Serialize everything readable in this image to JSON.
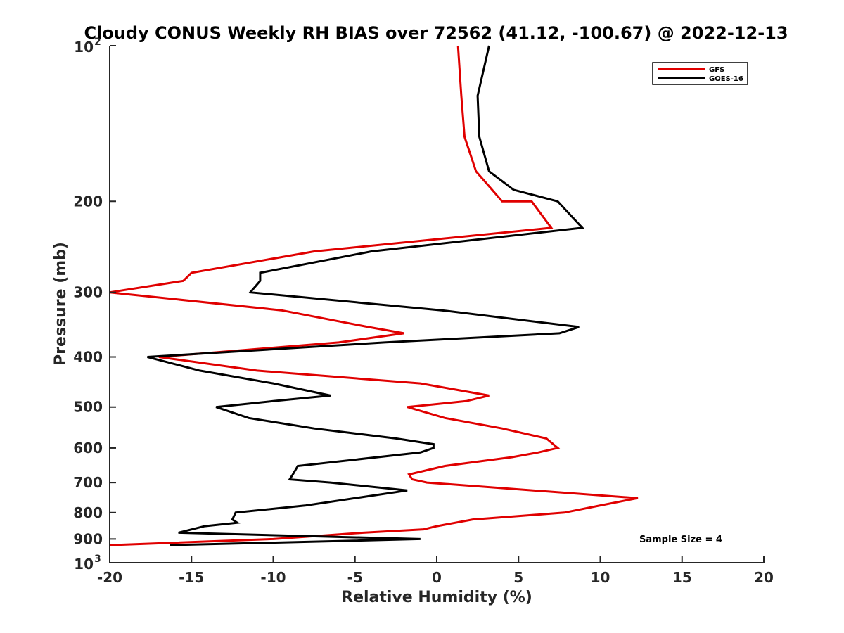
{
  "chart_data": {
    "type": "line",
    "title": "Cloudy CONUS Weekly RH BIAS over 72562 (41.12, -100.67) @ 2022-12-13",
    "xlabel": "Relative Humidity (%)",
    "ylabel": "Pressure (mb)",
    "xlim": [
      -20,
      20
    ],
    "ylim": [
      100,
      1000
    ],
    "y_scale": "log",
    "y_reversed": true,
    "x_ticks": [
      -20,
      -15,
      -10,
      -5,
      0,
      5,
      10,
      15,
      20
    ],
    "x_tick_labels": [
      "-20",
      "-15",
      "-10",
      "-5",
      "0",
      "5",
      "10",
      "15",
      "20"
    ],
    "y_ticks": [
      200,
      300,
      400,
      500,
      600,
      700,
      800,
      900
    ],
    "y_tick_labels": [
      "200",
      "300",
      "400",
      "500",
      "600",
      "700",
      "800",
      "900"
    ],
    "y_extreme_ticks": [
      {
        "value": 100,
        "base": "10",
        "exp": "2"
      },
      {
        "value": 1000,
        "base": "10",
        "exp": "3"
      }
    ],
    "grid": false,
    "legend_position": "top-right",
    "annotation": "Sample Size = 4",
    "series": [
      {
        "name": "GFS",
        "color": "#e00000",
        "points": [
          {
            "x": 1.3,
            "y": 100
          },
          {
            "x": 1.5,
            "y": 125
          },
          {
            "x": 1.7,
            "y": 150
          },
          {
            "x": 2.4,
            "y": 175
          },
          {
            "x": 4.0,
            "y": 200
          },
          {
            "x": 5.8,
            "y": 200
          },
          {
            "x": 7.0,
            "y": 225
          },
          {
            "x": -7.5,
            "y": 250
          },
          {
            "x": -15.0,
            "y": 275
          },
          {
            "x": -15.5,
            "y": 285
          },
          {
            "x": -20.0,
            "y": 300
          },
          {
            "x": -9.5,
            "y": 325
          },
          {
            "x": -4.2,
            "y": 350
          },
          {
            "x": -2.0,
            "y": 360
          },
          {
            "x": -6.0,
            "y": 375
          },
          {
            "x": -17.0,
            "y": 400
          },
          {
            "x": -11.0,
            "y": 425
          },
          {
            "x": -1.0,
            "y": 450
          },
          {
            "x": 3.2,
            "y": 475
          },
          {
            "x": 1.8,
            "y": 487
          },
          {
            "x": -1.8,
            "y": 500
          },
          {
            "x": 0.5,
            "y": 525
          },
          {
            "x": 4.0,
            "y": 550
          },
          {
            "x": 6.7,
            "y": 575
          },
          {
            "x": 7.4,
            "y": 600
          },
          {
            "x": 6.2,
            "y": 612
          },
          {
            "x": 4.6,
            "y": 625
          },
          {
            "x": 0.5,
            "y": 650
          },
          {
            "x": -1.7,
            "y": 675
          },
          {
            "x": -1.5,
            "y": 690
          },
          {
            "x": -0.6,
            "y": 700
          },
          {
            "x": 12.3,
            "y": 750
          },
          {
            "x": 10.0,
            "y": 775
          },
          {
            "x": 7.8,
            "y": 800
          },
          {
            "x": 2.2,
            "y": 825
          },
          {
            "x": 0.0,
            "y": 850
          },
          {
            "x": -0.8,
            "y": 862
          },
          {
            "x": -4.5,
            "y": 875
          },
          {
            "x": -10.0,
            "y": 900
          },
          {
            "x": -20.0,
            "y": 925
          }
        ]
      },
      {
        "name": "GOES-16",
        "color": "#000000",
        "points": [
          {
            "x": 3.2,
            "y": 100
          },
          {
            "x": 2.5,
            "y": 125
          },
          {
            "x": 2.6,
            "y": 150
          },
          {
            "x": 3.2,
            "y": 175
          },
          {
            "x": 4.7,
            "y": 190
          },
          {
            "x": 7.4,
            "y": 200
          },
          {
            "x": 8.9,
            "y": 225
          },
          {
            "x": -4.0,
            "y": 250
          },
          {
            "x": -10.8,
            "y": 275
          },
          {
            "x": -10.8,
            "y": 285
          },
          {
            "x": -11.4,
            "y": 300
          },
          {
            "x": 0.3,
            "y": 325
          },
          {
            "x": 8.7,
            "y": 350
          },
          {
            "x": 7.5,
            "y": 360
          },
          {
            "x": -3.2,
            "y": 375
          },
          {
            "x": -17.7,
            "y": 400
          },
          {
            "x": -14.5,
            "y": 425
          },
          {
            "x": -10.0,
            "y": 450
          },
          {
            "x": -6.5,
            "y": 475
          },
          {
            "x": -10.0,
            "y": 487
          },
          {
            "x": -13.5,
            "y": 500
          },
          {
            "x": -11.5,
            "y": 525
          },
          {
            "x": -7.5,
            "y": 550
          },
          {
            "x": -2.5,
            "y": 575
          },
          {
            "x": -0.2,
            "y": 590
          },
          {
            "x": -0.2,
            "y": 600
          },
          {
            "x": -1.0,
            "y": 612
          },
          {
            "x": -8.5,
            "y": 650
          },
          {
            "x": -8.8,
            "y": 675
          },
          {
            "x": -9.0,
            "y": 690
          },
          {
            "x": -6.5,
            "y": 700
          },
          {
            "x": -1.8,
            "y": 725
          },
          {
            "x": -8.0,
            "y": 775
          },
          {
            "x": -12.3,
            "y": 800
          },
          {
            "x": -12.5,
            "y": 825
          },
          {
            "x": -12.2,
            "y": 837
          },
          {
            "x": -14.2,
            "y": 850
          },
          {
            "x": -15.8,
            "y": 875
          },
          {
            "x": -1.0,
            "y": 900
          },
          {
            "x": -16.3,
            "y": 925
          }
        ]
      }
    ]
  }
}
